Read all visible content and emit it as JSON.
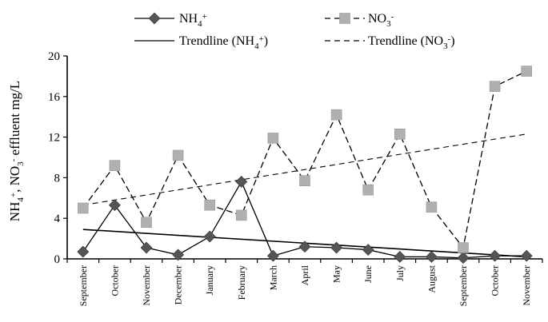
{
  "chart_data": {
    "type": "line",
    "categories": [
      "September",
      "October",
      "November",
      "December",
      "January",
      "February",
      "March",
      "April",
      "May",
      "June",
      "July",
      "August",
      "September",
      "October",
      "November"
    ],
    "ylabel_parts": [
      "NH",
      "4",
      "+",
      ", NO",
      "3",
      "-",
      " effluent mg/L"
    ],
    "ylim": [
      0,
      20
    ],
    "yticks": [
      0,
      4,
      8,
      12,
      16,
      20
    ],
    "grid": false,
    "legend_position": "top",
    "series": [
      {
        "key": "nh4",
        "name_parts": [
          "NH",
          "4",
          "+"
        ],
        "color": "#555555",
        "marker": "diamond",
        "line_style": "solid",
        "values": [
          0.7,
          5.3,
          1.1,
          0.4,
          2.2,
          7.6,
          0.3,
          1.2,
          1.1,
          0.9,
          0.2,
          0.2,
          0.1,
          0.3,
          0.3
        ],
        "trend": [
          2.9,
          0.2
        ]
      },
      {
        "key": "no3",
        "name_parts": [
          "NO",
          "3",
          "-"
        ],
        "color": "#b0b0b0",
        "marker": "square",
        "line_style": "dashed",
        "values": [
          5.0,
          9.2,
          3.6,
          10.2,
          5.3,
          4.3,
          11.9,
          7.7,
          14.2,
          6.8,
          12.3,
          5.1,
          1.1,
          17.0,
          18.5
        ],
        "trend": [
          5.3,
          12.3
        ]
      }
    ],
    "legend": [
      {
        "key": "nh4",
        "kind": "series",
        "label_parts": [
          "NH",
          "4",
          "+"
        ]
      },
      {
        "key": "no3",
        "kind": "series",
        "label_parts": [
          "NO",
          "3",
          "-"
        ]
      },
      {
        "key": "nh4",
        "kind": "trend",
        "label_parts": [
          "Trendline (NH",
          "4",
          "+",
          ")"
        ]
      },
      {
        "key": "no3",
        "kind": "trend",
        "label_parts": [
          "Trendline (NO",
          "3",
          "-",
          ")"
        ]
      }
    ]
  }
}
